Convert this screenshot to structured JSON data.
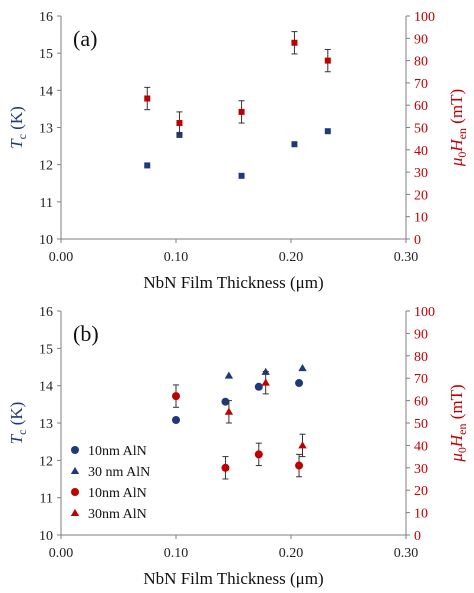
{
  "chart_data": [
    {
      "type": "scatter",
      "panel_label": "(a)",
      "xlabel": "NbN Film Thickness (μm)",
      "ylabel_left": {
        "main": "T",
        "sub": "c",
        "unit": " (K)"
      },
      "ylabel_right": {
        "pre": "μ",
        "sub1": "0",
        "main": "H",
        "sub2": "en",
        "unit": " (mT)"
      },
      "xlim": [
        0,
        0.3
      ],
      "xticks": [
        "0.00",
        "0.10",
        "0.20",
        "0.30"
      ],
      "ylim_left": [
        10,
        16
      ],
      "yticks_left": [
        "10",
        "11",
        "12",
        "13",
        "14",
        "15",
        "16"
      ],
      "ylim_right": [
        0,
        100
      ],
      "yticks_right": [
        "0",
        "10",
        "20",
        "30",
        "40",
        "50",
        "60",
        "70",
        "80",
        "90",
        "100"
      ],
      "grid": false,
      "legend": null,
      "series": [
        {
          "axis": "left",
          "marker": "square",
          "color": "#1f3a7a",
          "size": 6,
          "x": [
            0.075,
            0.103,
            0.157,
            0.203,
            0.232
          ],
          "y": [
            11.98,
            12.8,
            11.7,
            12.55,
            12.9
          ],
          "err": [
            0,
            0,
            0,
            0,
            0
          ]
        },
        {
          "axis": "right",
          "marker": "square",
          "color": "#c00000",
          "size": 6,
          "x": [
            0.075,
            0.103,
            0.157,
            0.203,
            0.232
          ],
          "y": [
            63,
            52,
            57,
            88,
            80
          ],
          "err": [
            5,
            5,
            5,
            5,
            5
          ]
        }
      ]
    },
    {
      "type": "scatter",
      "panel_label": "(b)",
      "xlabel": "NbN Film Thickness (μm)",
      "ylabel_left": {
        "main": "T",
        "sub": "c",
        "unit": " (K)"
      },
      "ylabel_right": {
        "pre": "μ",
        "sub1": "0",
        "main": "H",
        "sub2": "en",
        "unit": " (mT)"
      },
      "xlim": [
        0,
        0.3
      ],
      "xticks": [
        "0.00",
        "0.10",
        "0.20",
        "0.30"
      ],
      "ylim_left": [
        10,
        16
      ],
      "yticks_left": [
        "10",
        "11",
        "12",
        "13",
        "14",
        "15",
        "16"
      ],
      "ylim_right": [
        0,
        100
      ],
      "yticks_right": [
        "0",
        "10",
        "20",
        "30",
        "40",
        "50",
        "60",
        "70",
        "80",
        "90",
        "100"
      ],
      "grid": false,
      "legend": {
        "position": "bottom-left"
      },
      "series": [
        {
          "name": "10nm AlN",
          "axis": "left",
          "marker": "circle",
          "color": "#1f3a7a",
          "size": 7,
          "x": [
            0.1,
            0.143,
            0.172,
            0.207
          ],
          "y": [
            13.08,
            13.57,
            13.97,
            14.07
          ],
          "err": [
            0,
            0,
            0,
            0
          ]
        },
        {
          "name": "30 nm AlN",
          "axis": "left",
          "marker": "triangle",
          "color": "#1f3a7a",
          "size": 7,
          "x": [
            0.146,
            0.178,
            0.21
          ],
          "y": [
            14.27,
            14.37,
            14.47
          ],
          "err": [
            0,
            0,
            0
          ]
        },
        {
          "name": "10nm AlN",
          "axis": "right",
          "marker": "circle",
          "color": "#c00000",
          "size": 7,
          "x": [
            0.1,
            0.143,
            0.172,
            0.207
          ],
          "y": [
            62,
            30,
            36,
            31
          ],
          "err": [
            5,
            5,
            5,
            5
          ]
        },
        {
          "name": "30nm AlN",
          "axis": "right",
          "marker": "triangle",
          "color": "#c00000",
          "size": 7,
          "x": [
            0.146,
            0.178,
            0.21
          ],
          "y": [
            55,
            68,
            40
          ],
          "err": [
            5,
            5,
            5
          ]
        }
      ]
    }
  ]
}
